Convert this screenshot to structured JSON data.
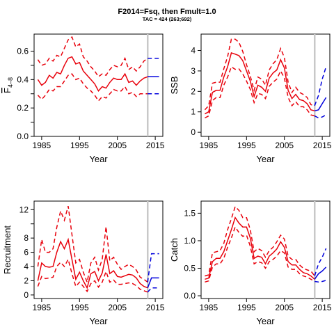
{
  "title": "F2014=Fsq, then Fmult=1.0",
  "subtitle": "TAC = 424 (263;692)",
  "colors": {
    "history": "#e8000b",
    "projection": "#0000dd",
    "divider": "#c8c8c8"
  },
  "chart_data": [
    {
      "type": "line",
      "panel": "F",
      "xlabel": "Year",
      "ylabel": "F 4-8",
      "xlim": [
        1983,
        2017
      ],
      "ylim": [
        0,
        0.72
      ],
      "xticks": [
        1985,
        1995,
        2005,
        2015
      ],
      "yticks": [
        0.0,
        0.2,
        0.4,
        0.6
      ],
      "ytick_labels": [
        "0.0",
        "0.2",
        "0.4",
        "0.6"
      ],
      "minor_yticks": [
        0.1,
        0.3,
        0.5
      ],
      "divider_x": 2013,
      "x": [
        1984,
        1985,
        1986,
        1987,
        1988,
        1989,
        1990,
        1991,
        1992,
        1993,
        1994,
        1995,
        1996,
        1997,
        1998,
        1999,
        2000,
        2001,
        2002,
        2003,
        2004,
        2005,
        2006,
        2007,
        2008,
        2009,
        2010,
        2011,
        2012,
        2013
      ],
      "series": [
        {
          "role": "estimate",
          "style": "solid",
          "values": [
            0.4,
            0.36,
            0.38,
            0.43,
            0.41,
            0.45,
            0.44,
            0.5,
            0.55,
            0.56,
            0.51,
            0.52,
            0.46,
            0.43,
            0.4,
            0.37,
            0.32,
            0.35,
            0.34,
            0.38,
            0.41,
            0.4,
            0.4,
            0.44,
            0.38,
            0.39,
            0.36,
            0.39,
            0.41,
            0.42
          ]
        },
        {
          "role": "upper",
          "style": "dashed",
          "values": [
            0.54,
            0.5,
            0.51,
            0.55,
            0.53,
            0.57,
            0.56,
            0.62,
            0.68,
            0.7,
            0.63,
            0.65,
            0.56,
            0.53,
            0.49,
            0.46,
            0.42,
            0.44,
            0.43,
            0.47,
            0.5,
            0.49,
            0.5,
            0.55,
            0.47,
            0.49,
            0.46,
            0.49,
            0.53,
            0.55
          ]
        },
        {
          "role": "lower",
          "style": "dashed",
          "values": [
            0.29,
            0.26,
            0.29,
            0.33,
            0.32,
            0.35,
            0.35,
            0.39,
            0.43,
            0.44,
            0.4,
            0.41,
            0.37,
            0.34,
            0.32,
            0.29,
            0.25,
            0.28,
            0.27,
            0.3,
            0.33,
            0.32,
            0.32,
            0.35,
            0.3,
            0.31,
            0.28,
            0.3,
            0.3,
            0.3
          ]
        }
      ],
      "projection": {
        "x": [
          2013,
          2014,
          2015,
          2016
        ],
        "estimate": [
          0.42,
          0.42,
          0.42,
          0.42
        ],
        "upper": [
          0.55,
          0.55,
          0.55,
          0.55
        ],
        "lower": [
          0.3,
          0.3,
          0.3,
          0.3
        ]
      }
    },
    {
      "type": "line",
      "panel": "SSB",
      "xlabel": "Year",
      "ylabel": "SSB",
      "xlim": [
        1983,
        2017
      ],
      "ylim": [
        -0.2,
        4.8
      ],
      "xticks": [
        1985,
        1995,
        2005,
        2015
      ],
      "yticks": [
        0,
        1,
        2,
        3,
        4
      ],
      "ytick_labels": [
        "0",
        "1",
        "2",
        "3",
        "4"
      ],
      "divider_x": 2013,
      "x": [
        1984,
        1985,
        1986,
        1987,
        1988,
        1989,
        1990,
        1991,
        1992,
        1993,
        1994,
        1995,
        1996,
        1997,
        1998,
        1999,
        2000,
        2001,
        2002,
        2003,
        2004,
        2005,
        2006,
        2007,
        2008,
        2009,
        2010,
        2011,
        2012,
        2013
      ],
      "series": [
        {
          "role": "estimate",
          "style": "solid",
          "values": [
            0.9,
            1.0,
            1.95,
            2.05,
            2.05,
            2.7,
            3.2,
            3.88,
            3.82,
            3.75,
            3.5,
            3.0,
            2.5,
            1.75,
            2.3,
            2.2,
            2.0,
            2.65,
            2.9,
            3.05,
            3.55,
            3.15,
            2.05,
            1.65,
            1.85,
            1.6,
            1.55,
            1.4,
            1.1,
            1.05
          ]
        },
        {
          "role": "upper",
          "style": "dashed",
          "values": [
            1.1,
            1.3,
            2.4,
            2.45,
            2.45,
            3.1,
            3.7,
            4.55,
            4.55,
            4.4,
            3.95,
            3.3,
            2.75,
            2.05,
            2.7,
            2.6,
            2.3,
            3.05,
            3.35,
            3.55,
            4.1,
            3.65,
            2.45,
            1.95,
            2.2,
            1.95,
            1.85,
            1.7,
            1.35,
            1.3
          ]
        },
        {
          "role": "lower",
          "style": "dashed",
          "values": [
            0.7,
            0.8,
            1.55,
            1.7,
            1.7,
            2.3,
            2.7,
            3.2,
            3.08,
            3.1,
            2.85,
            2.5,
            2.1,
            1.45,
            1.9,
            1.85,
            1.65,
            2.25,
            2.45,
            2.6,
            3.0,
            2.65,
            1.7,
            1.3,
            1.5,
            1.25,
            1.25,
            1.1,
            0.85,
            0.8
          ]
        }
      ],
      "projection": {
        "x": [
          2013,
          2014,
          2015,
          2016
        ],
        "estimate": [
          1.05,
          1.1,
          1.4,
          1.7
        ],
        "upper": [
          1.3,
          1.8,
          2.6,
          3.2
        ],
        "lower": [
          0.8,
          0.7,
          0.75,
          0.85
        ]
      }
    },
    {
      "type": "line",
      "panel": "Recruitment",
      "xlabel": "Year",
      "ylabel": "Recruitment",
      "xlim": [
        1983,
        2017
      ],
      "ylim": [
        -0.5,
        13.2
      ],
      "xticks": [
        1985,
        1995,
        2005,
        2015
      ],
      "yticks": [
        0,
        2,
        4,
        6,
        8,
        12
      ],
      "ytick_labels": [
        "0",
        "2",
        "4",
        "6",
        "8",
        "12"
      ],
      "minor_yticks": [
        10
      ],
      "divider_x": 2013,
      "x": [
        1984,
        1985,
        1986,
        1987,
        1988,
        1989,
        1990,
        1991,
        1992,
        1993,
        1994,
        1995,
        1996,
        1997,
        1998,
        1999,
        2000,
        2001,
        2002,
        2003,
        2004,
        2005,
        2006,
        2007,
        2008,
        2009,
        2010,
        2011,
        2012,
        2013
      ],
      "series": [
        {
          "role": "estimate",
          "style": "solid",
          "values": [
            2.0,
            4.5,
            4.0,
            3.9,
            4.0,
            6.0,
            7.5,
            6.5,
            7.8,
            5.0,
            2.2,
            3.2,
            2.0,
            1.0,
            3.0,
            3.3,
            2.0,
            3.1,
            5.7,
            3.0,
            3.4,
            2.6,
            2.5,
            2.7,
            2.9,
            2.8,
            2.4,
            1.6,
            1.2,
            1.0
          ]
        },
        {
          "role": "upper",
          "style": "dashed",
          "values": [
            4.0,
            7.8,
            6.0,
            6.0,
            6.5,
            9.5,
            11.8,
            10.5,
            12.5,
            8.5,
            4.5,
            5.0,
            3.2,
            1.8,
            4.5,
            5.3,
            3.5,
            5.0,
            9.6,
            4.8,
            5.3,
            4.3,
            3.6,
            4.0,
            4.3,
            4.0,
            3.5,
            2.5,
            2.2,
            1.8
          ]
        },
        {
          "role": "lower",
          "style": "dashed",
          "values": [
            1.2,
            2.6,
            2.3,
            2.4,
            2.5,
            4.0,
            4.6,
            4.0,
            5.0,
            3.0,
            1.2,
            1.8,
            1.2,
            0.5,
            1.6,
            2.0,
            1.1,
            1.8,
            3.3,
            1.8,
            2.1,
            1.5,
            1.5,
            1.6,
            1.7,
            1.6,
            1.3,
            0.8,
            0.6,
            0.4
          ]
        }
      ],
      "projection": {
        "x": [
          2013,
          2014,
          2015,
          2016
        ],
        "estimate": [
          1.0,
          2.4,
          2.4,
          2.4
        ],
        "upper": [
          1.8,
          5.8,
          5.8,
          5.8
        ],
        "lower": [
          0.4,
          1.0,
          1.0,
          1.0
        ]
      }
    },
    {
      "type": "line",
      "panel": "Catch",
      "xlabel": "Year",
      "ylabel": "Catch",
      "xlim": [
        1983,
        2017
      ],
      "ylim": [
        -0.05,
        1.72
      ],
      "xticks": [
        1985,
        1995,
        2005,
        2015
      ],
      "yticks": [
        0.0,
        0.5,
        1.0,
        1.5
      ],
      "ytick_labels": [
        "0.0",
        "0.5",
        "1.0",
        "1.5"
      ],
      "divider_x": 2013,
      "x": [
        1984,
        1985,
        1986,
        1987,
        1988,
        1989,
        1990,
        1991,
        1992,
        1993,
        1994,
        1995,
        1996,
        1997,
        1998,
        1999,
        2000,
        2001,
        2002,
        2003,
        2004,
        2005,
        2006,
        2007,
        2008,
        2009,
        2010,
        2011,
        2012,
        2013
      ],
      "series": [
        {
          "role": "estimate",
          "style": "solid",
          "values": [
            0.3,
            0.32,
            0.62,
            0.68,
            0.68,
            0.8,
            1.0,
            1.2,
            1.42,
            1.32,
            1.25,
            1.25,
            1.05,
            0.68,
            0.72,
            0.7,
            0.58,
            0.72,
            0.78,
            0.85,
            0.98,
            0.88,
            0.62,
            0.56,
            0.56,
            0.48,
            0.42,
            0.4,
            0.36,
            0.3
          ]
        },
        {
          "role": "upper",
          "style": "dashed",
          "values": [
            0.36,
            0.38,
            0.78,
            0.8,
            0.82,
            0.95,
            1.2,
            1.4,
            1.62,
            1.55,
            1.42,
            1.42,
            1.2,
            0.8,
            0.86,
            0.82,
            0.7,
            0.82,
            0.88,
            0.98,
            1.1,
            1.03,
            0.72,
            0.66,
            0.66,
            0.56,
            0.5,
            0.47,
            0.45,
            0.36
          ]
        },
        {
          "role": "lower",
          "style": "dashed",
          "values": [
            0.25,
            0.27,
            0.52,
            0.58,
            0.58,
            0.68,
            0.88,
            1.05,
            1.25,
            1.15,
            1.08,
            1.1,
            0.9,
            0.58,
            0.62,
            0.6,
            0.5,
            0.62,
            0.66,
            0.72,
            0.82,
            0.78,
            0.52,
            0.48,
            0.48,
            0.4,
            0.36,
            0.34,
            0.3,
            0.26
          ]
        }
      ],
      "projection": {
        "x": [
          2013,
          2014,
          2015,
          2016
        ],
        "estimate": [
          0.3,
          0.4,
          0.45,
          0.52
        ],
        "upper": [
          0.36,
          0.58,
          0.7,
          0.86
        ],
        "lower": [
          0.26,
          0.25,
          0.26,
          0.28
        ]
      }
    }
  ]
}
